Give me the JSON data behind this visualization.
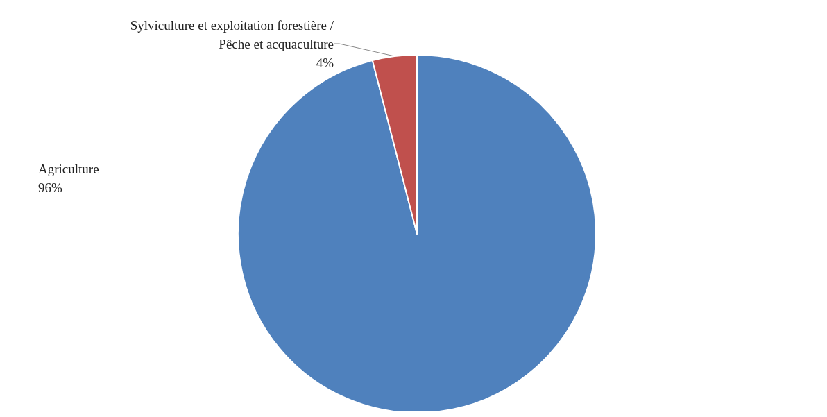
{
  "chart_data": {
    "type": "pie",
    "categories": [
      "Agriculture",
      "Sylviculture et exploitation forestière / Pêche et acquaculture"
    ],
    "values": [
      96,
      4
    ],
    "colors": [
      "#4f81bd",
      "#c0504d"
    ],
    "value_labels": [
      "96%",
      "4%"
    ],
    "legend": false
  }
}
